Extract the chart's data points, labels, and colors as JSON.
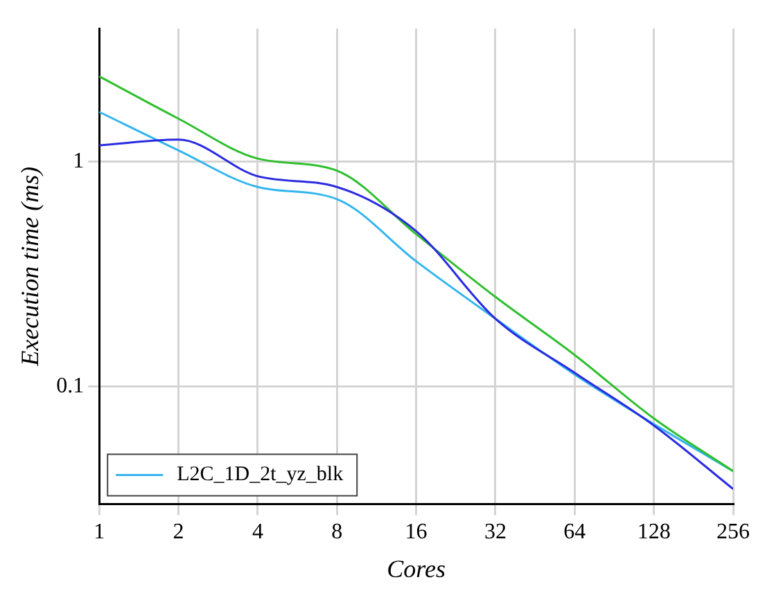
{
  "chart_data": {
    "type": "line",
    "xlabel": "Cores",
    "ylabel": "Execution time (ms)",
    "log": "xy",
    "x": [
      1,
      2,
      4,
      8,
      16,
      32,
      64,
      128,
      256
    ],
    "series": [
      {
        "color": "#2b2be0",
        "values": [
          1.18,
          1.25,
          0.86,
          0.77,
          0.49,
          0.2,
          0.115,
          0.067,
          0.035
        ]
      },
      {
        "color": "#2fbf2f",
        "values": [
          2.39,
          1.55,
          1.03,
          0.91,
          0.475,
          0.25,
          0.138,
          0.072,
          0.042
        ]
      },
      {
        "name": "L2C_1D_2t_yz_blk",
        "color": "#33b5ee",
        "values": [
          1.66,
          1.12,
          0.77,
          0.68,
          0.36,
          0.2,
          0.113,
          0.068,
          0.042
        ]
      }
    ],
    "xlim": [
      1,
      256
    ],
    "xticks": [
      1,
      2,
      4,
      8,
      16,
      32,
      64,
      128,
      256
    ],
    "ylim": [
      0.03,
      3.9
    ],
    "yticks": [
      0.1,
      1
    ],
    "grid": true,
    "legend": "bottom left",
    "marker": "none",
    "line_style": "solid"
  }
}
